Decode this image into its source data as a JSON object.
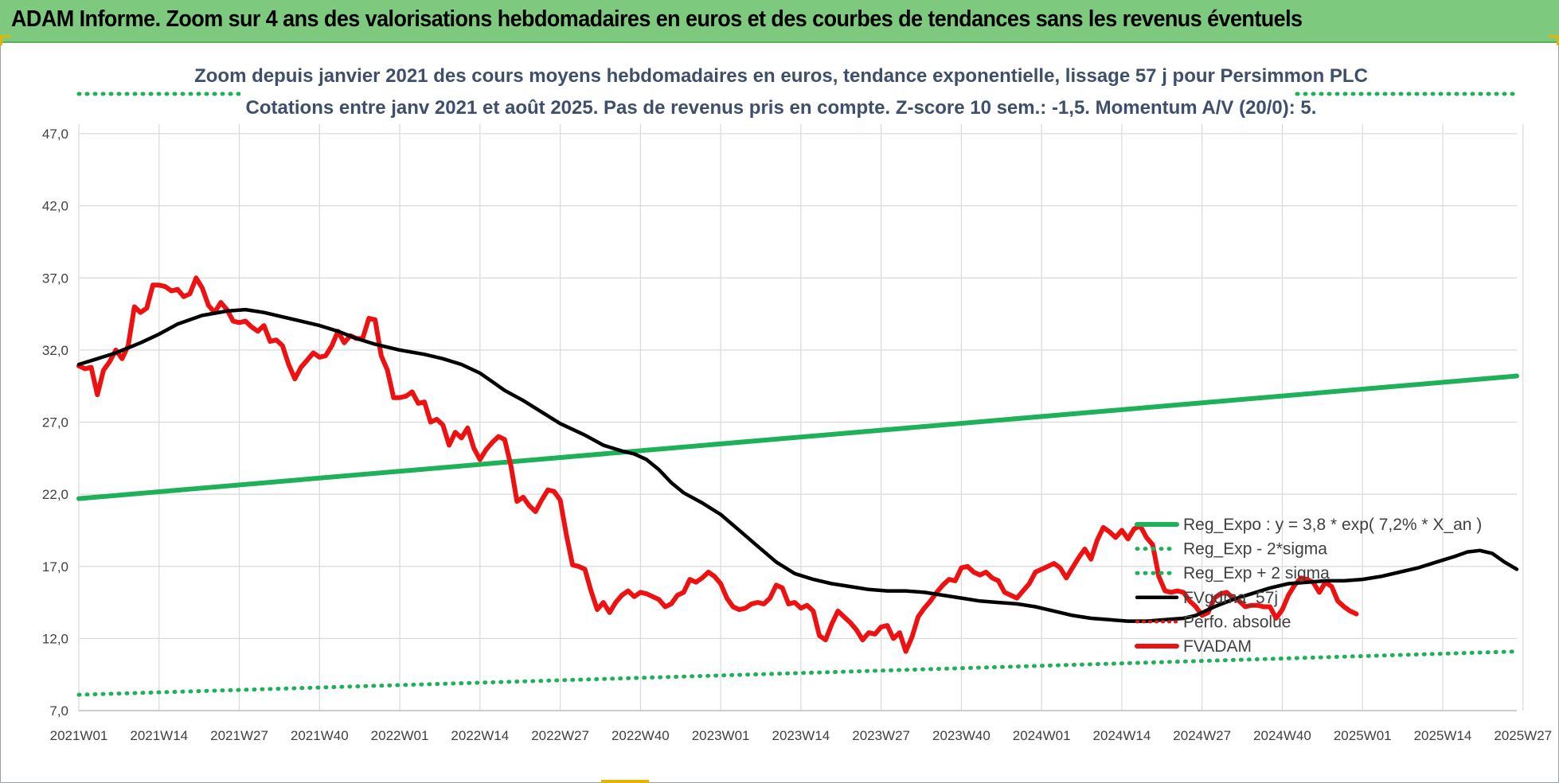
{
  "banner": {
    "title": "ADAM Informe. Zoom sur 4 ans des valorisations hebdomadaires en euros et des courbes de tendances sans les revenus éventuels"
  },
  "colors": {
    "banner_bg": "#7dc97d",
    "series_red": "#ee1111",
    "series_green": "#1fb05a",
    "series_black": "#000000",
    "grid": "#d9d9d9"
  },
  "chart_data": {
    "type": "line",
    "title_line1": "Zoom depuis janvier 2021 des cours moyens hebdomadaires en euros, tendance exponentielle, lissage 57 j pour Persimmon PLC",
    "title_line2": "Cotations entre janv 2021 et août 2025.  Pas de revenus pris en compte. Z-score 10 sem.: -1,5. Momentum A/V (20/0): 5.",
    "ylim": [
      7,
      50
    ],
    "yticks": [
      "7,0",
      "12,0",
      "17,0",
      "22,0",
      "27,0",
      "32,0",
      "37,0",
      "42,0",
      "47,0"
    ],
    "xticks": [
      "2021W01",
      "2021W14",
      "2021W27",
      "2021W40",
      "2022W01",
      "2022W14",
      "2022W27",
      "2022W40",
      "2023W01",
      "2023W14",
      "2023W27",
      "2023W40",
      "2024W01",
      "2024W14",
      "2024W27",
      "2024W40",
      "2025W01",
      "2025W14",
      "2025W27"
    ],
    "x_weeks": [
      0,
      233
    ],
    "grid": true,
    "legend_position": "right",
    "series": [
      {
        "name": "Reg_Expo : y = 3,8 * exp( 7,2% *  X_an )",
        "style": "solid-green",
        "points": [
          [
            0,
            21.7
          ],
          [
            233,
            30.2
          ]
        ]
      },
      {
        "name": "Reg_Exp - 2*sigma",
        "style": "dotted-green",
        "points": [
          [
            0,
            8.1
          ],
          [
            233,
            11.1
          ]
        ]
      },
      {
        "name": "Reg_Exp + 2 sigma",
        "style": "dotted-green",
        "points": [
          [
            0,
            49.5
          ],
          [
            233,
            49.5
          ]
        ]
      },
      {
        "name": "FVgdma_57j",
        "style": "solid-black",
        "points": [
          [
            0,
            31.0
          ],
          [
            3,
            31.4
          ],
          [
            6,
            31.8
          ],
          [
            10,
            32.5
          ],
          [
            13,
            33.1
          ],
          [
            16,
            33.8
          ],
          [
            20,
            34.4
          ],
          [
            24,
            34.7
          ],
          [
            27,
            34.8
          ],
          [
            30,
            34.6
          ],
          [
            33,
            34.3
          ],
          [
            36,
            34.0
          ],
          [
            39,
            33.7
          ],
          [
            42,
            33.3
          ],
          [
            45,
            32.8
          ],
          [
            48,
            32.4
          ],
          [
            52,
            32.0
          ],
          [
            56,
            31.7
          ],
          [
            59,
            31.4
          ],
          [
            62,
            31.0
          ],
          [
            65,
            30.4
          ],
          [
            67,
            29.8
          ],
          [
            69,
            29.2
          ],
          [
            72,
            28.5
          ],
          [
            75,
            27.7
          ],
          [
            78,
            26.9
          ],
          [
            82,
            26.1
          ],
          [
            85,
            25.4
          ],
          [
            88,
            25.0
          ],
          [
            90,
            24.8
          ],
          [
            92,
            24.4
          ],
          [
            94,
            23.7
          ],
          [
            96,
            22.8
          ],
          [
            98,
            22.1
          ],
          [
            101,
            21.4
          ],
          [
            104,
            20.6
          ],
          [
            107,
            19.5
          ],
          [
            110,
            18.4
          ],
          [
            113,
            17.3
          ],
          [
            116,
            16.5
          ],
          [
            119,
            16.1
          ],
          [
            122,
            15.8
          ],
          [
            125,
            15.6
          ],
          [
            128,
            15.4
          ],
          [
            131,
            15.3
          ],
          [
            134,
            15.3
          ],
          [
            137,
            15.2
          ],
          [
            140,
            15.0
          ],
          [
            143,
            14.8
          ],
          [
            146,
            14.6
          ],
          [
            149,
            14.5
          ],
          [
            152,
            14.4
          ],
          [
            155,
            14.2
          ],
          [
            158,
            13.9
          ],
          [
            161,
            13.6
          ],
          [
            164,
            13.4
          ],
          [
            167,
            13.3
          ],
          [
            170,
            13.2
          ],
          [
            173,
            13.2
          ],
          [
            176,
            13.3
          ],
          [
            179,
            13.4
          ],
          [
            181,
            13.6
          ],
          [
            184,
            14.2
          ],
          [
            187,
            14.7
          ],
          [
            190,
            15.1
          ],
          [
            193,
            15.5
          ],
          [
            196,
            15.8
          ],
          [
            199,
            15.9
          ],
          [
            202,
            16.0
          ],
          [
            205,
            16.0
          ],
          [
            208,
            16.1
          ],
          [
            211,
            16.3
          ],
          [
            214,
            16.6
          ],
          [
            217,
            16.9
          ],
          [
            220,
            17.3
          ],
          [
            223,
            17.7
          ],
          [
            225,
            18.0
          ],
          [
            227,
            18.1
          ],
          [
            229,
            17.9
          ],
          [
            231,
            17.3
          ],
          [
            233,
            16.8
          ]
        ]
      },
      {
        "name": "Perfo. absolue",
        "style": "dotted-red",
        "points": []
      },
      {
        "name": "FVADAM",
        "style": "solid-red",
        "points": [
          [
            0,
            30.9
          ],
          [
            1,
            30.7
          ],
          [
            2,
            30.8
          ],
          [
            3,
            28.9
          ],
          [
            4,
            30.6
          ],
          [
            5,
            31.2
          ],
          [
            6,
            32.0
          ],
          [
            7,
            31.4
          ],
          [
            8,
            32.3
          ],
          [
            9,
            35.0
          ],
          [
            10,
            34.6
          ],
          [
            11,
            34.9
          ],
          [
            12,
            36.5
          ],
          [
            13,
            36.5
          ],
          [
            14,
            36.4
          ],
          [
            15,
            36.1
          ],
          [
            16,
            36.2
          ],
          [
            17,
            35.7
          ],
          [
            18,
            35.9
          ],
          [
            19,
            37.0
          ],
          [
            20,
            36.3
          ],
          [
            21,
            35.1
          ],
          [
            22,
            34.6
          ],
          [
            23,
            35.3
          ],
          [
            24,
            34.8
          ],
          [
            25,
            34.0
          ],
          [
            26,
            33.9
          ],
          [
            27,
            34.0
          ],
          [
            28,
            33.6
          ],
          [
            29,
            33.3
          ],
          [
            30,
            33.7
          ],
          [
            31,
            32.6
          ],
          [
            32,
            32.7
          ],
          [
            33,
            32.3
          ],
          [
            34,
            31.0
          ],
          [
            35,
            30.0
          ],
          [
            36,
            30.8
          ],
          [
            37,
            31.3
          ],
          [
            38,
            31.8
          ],
          [
            39,
            31.5
          ],
          [
            40,
            31.6
          ],
          [
            41,
            32.3
          ],
          [
            42,
            33.3
          ],
          [
            43,
            32.5
          ],
          [
            44,
            33.0
          ],
          [
            45,
            32.8
          ],
          [
            46,
            32.8
          ],
          [
            47,
            34.2
          ],
          [
            48,
            34.1
          ],
          [
            49,
            31.6
          ],
          [
            50,
            30.6
          ],
          [
            51,
            28.7
          ],
          [
            52,
            28.7
          ],
          [
            53,
            28.8
          ],
          [
            54,
            29.1
          ],
          [
            55,
            28.3
          ],
          [
            56,
            28.4
          ],
          [
            57,
            27.0
          ],
          [
            58,
            27.2
          ],
          [
            59,
            26.8
          ],
          [
            60,
            25.4
          ],
          [
            61,
            26.3
          ],
          [
            62,
            25.9
          ],
          [
            63,
            26.6
          ],
          [
            64,
            25.2
          ],
          [
            65,
            24.4
          ],
          [
            66,
            25.1
          ],
          [
            67,
            25.6
          ],
          [
            68,
            26.0
          ],
          [
            69,
            25.8
          ],
          [
            70,
            24.0
          ],
          [
            71,
            21.5
          ],
          [
            72,
            21.8
          ],
          [
            73,
            21.2
          ],
          [
            74,
            20.8
          ],
          [
            75,
            21.6
          ],
          [
            76,
            22.3
          ],
          [
            77,
            22.2
          ],
          [
            78,
            21.6
          ],
          [
            79,
            19.2
          ],
          [
            80,
            17.1
          ],
          [
            81,
            17.0
          ],
          [
            82,
            16.8
          ],
          [
            83,
            15.3
          ],
          [
            84,
            14.0
          ],
          [
            85,
            14.5
          ],
          [
            86,
            13.8
          ],
          [
            87,
            14.5
          ],
          [
            88,
            15.0
          ],
          [
            89,
            15.3
          ],
          [
            90,
            14.9
          ],
          [
            91,
            15.2
          ],
          [
            92,
            15.1
          ],
          [
            93,
            14.9
          ],
          [
            94,
            14.7
          ],
          [
            95,
            14.2
          ],
          [
            96,
            14.4
          ],
          [
            97,
            15.0
          ],
          [
            98,
            15.2
          ],
          [
            99,
            16.1
          ],
          [
            100,
            15.9
          ],
          [
            101,
            16.2
          ],
          [
            102,
            16.6
          ],
          [
            103,
            16.3
          ],
          [
            104,
            15.8
          ],
          [
            105,
            14.8
          ],
          [
            106,
            14.2
          ],
          [
            107,
            14.0
          ],
          [
            108,
            14.1
          ],
          [
            109,
            14.4
          ],
          [
            110,
            14.5
          ],
          [
            111,
            14.4
          ],
          [
            112,
            14.8
          ],
          [
            113,
            15.7
          ],
          [
            114,
            15.5
          ],
          [
            115,
            14.4
          ],
          [
            116,
            14.5
          ],
          [
            117,
            14.1
          ],
          [
            118,
            14.3
          ],
          [
            119,
            13.9
          ],
          [
            120,
            12.2
          ],
          [
            121,
            11.9
          ],
          [
            122,
            13.0
          ],
          [
            123,
            13.9
          ],
          [
            124,
            13.5
          ],
          [
            125,
            13.1
          ],
          [
            126,
            12.6
          ],
          [
            127,
            11.9
          ],
          [
            128,
            12.4
          ],
          [
            129,
            12.3
          ],
          [
            130,
            12.8
          ],
          [
            131,
            12.9
          ],
          [
            132,
            12.0
          ],
          [
            133,
            12.4
          ],
          [
            134,
            11.1
          ],
          [
            135,
            12.1
          ],
          [
            136,
            13.5
          ],
          [
            137,
            14.1
          ],
          [
            138,
            14.6
          ],
          [
            139,
            15.2
          ],
          [
            140,
            15.7
          ],
          [
            141,
            16.1
          ],
          [
            142,
            16.0
          ],
          [
            143,
            16.9
          ],
          [
            144,
            17.0
          ],
          [
            145,
            16.6
          ],
          [
            146,
            16.4
          ],
          [
            147,
            16.6
          ],
          [
            148,
            16.2
          ],
          [
            149,
            16.0
          ],
          [
            150,
            15.2
          ],
          [
            151,
            15.0
          ],
          [
            152,
            14.8
          ],
          [
            153,
            15.3
          ],
          [
            154,
            15.8
          ],
          [
            155,
            16.6
          ],
          [
            156,
            16.8
          ],
          [
            157,
            17.0
          ],
          [
            158,
            17.2
          ],
          [
            159,
            16.9
          ],
          [
            160,
            16.2
          ],
          [
            161,
            16.9
          ],
          [
            162,
            17.6
          ],
          [
            163,
            18.2
          ],
          [
            164,
            17.5
          ],
          [
            165,
            18.8
          ],
          [
            166,
            19.7
          ],
          [
            167,
            19.4
          ],
          [
            168,
            19.0
          ],
          [
            169,
            19.5
          ],
          [
            170,
            18.9
          ],
          [
            171,
            19.6
          ],
          [
            172,
            19.8
          ],
          [
            173,
            19.0
          ],
          [
            174,
            18.5
          ],
          [
            175,
            16.3
          ],
          [
            176,
            15.3
          ],
          [
            177,
            15.2
          ],
          [
            178,
            15.3
          ],
          [
            179,
            15.2
          ],
          [
            180,
            14.6
          ],
          [
            181,
            14.2
          ],
          [
            182,
            13.6
          ],
          [
            183,
            13.8
          ],
          [
            184,
            14.8
          ],
          [
            185,
            15.1
          ],
          [
            186,
            15.2
          ],
          [
            187,
            14.8
          ],
          [
            188,
            14.6
          ],
          [
            189,
            14.2
          ],
          [
            190,
            14.3
          ],
          [
            191,
            14.3
          ],
          [
            192,
            14.2
          ],
          [
            193,
            14.2
          ],
          [
            194,
            13.4
          ],
          [
            195,
            14.0
          ],
          [
            196,
            15.0
          ],
          [
            197,
            15.7
          ],
          [
            198,
            16.2
          ],
          [
            199,
            16.1
          ],
          [
            200,
            15.9
          ],
          [
            201,
            15.2
          ],
          [
            202,
            15.9
          ],
          [
            203,
            15.6
          ],
          [
            204,
            14.6
          ],
          [
            205,
            14.2
          ],
          [
            206,
            13.9
          ],
          [
            207,
            13.7
          ]
        ]
      }
    ]
  }
}
